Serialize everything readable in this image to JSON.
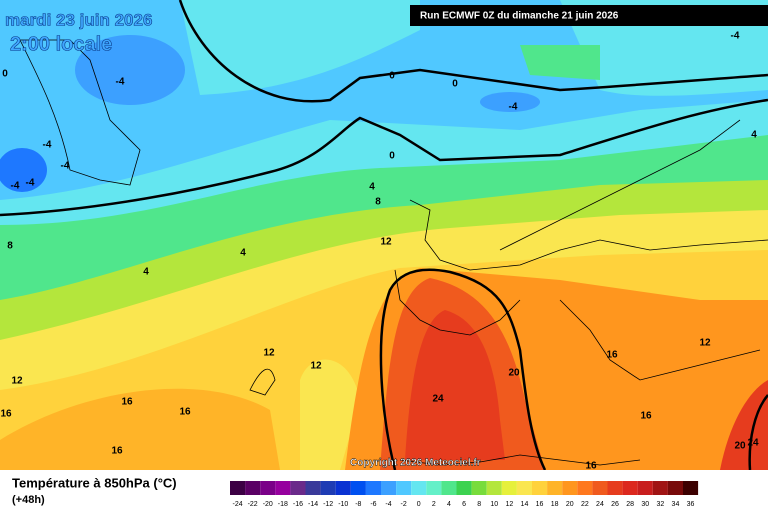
{
  "header": {
    "valid_date": "mardi 23 juin 2026",
    "local_time": "2:00 locale",
    "run": "Run ECMWF 0Z du dimanche 21 juin 2026"
  },
  "copyright": "Copyright 2026 Meteociel.fr",
  "legend": {
    "title": "Température à 850hPa (°C)",
    "lead": "(+48h)"
  },
  "colorbar": {
    "ticks": [
      -24,
      -22,
      -20,
      -18,
      -16,
      -14,
      -12,
      -10,
      -8,
      -6,
      -4,
      -2,
      0,
      2,
      4,
      6,
      8,
      10,
      12,
      14,
      16,
      18,
      20,
      22,
      24,
      26,
      28,
      30,
      32,
      34,
      36
    ],
    "colors": [
      "#3c0044",
      "#5a0064",
      "#7a0088",
      "#96009e",
      "#6a2a8a",
      "#3a3a9a",
      "#1e3cb4",
      "#0a32d2",
      "#0050f0",
      "#1e78ff",
      "#3ca0ff",
      "#50c8ff",
      "#64e6f0",
      "#64f0c8",
      "#50e68c",
      "#3cd250",
      "#78dc3c",
      "#b4e63c",
      "#e6f03c",
      "#fae650",
      "#ffd23c",
      "#ffb428",
      "#ff961e",
      "#ff781e",
      "#f05a1e",
      "#e63c1e",
      "#dc281e",
      "#c81e1e",
      "#a01414",
      "#780a0a",
      "#3c0000"
    ]
  },
  "contour_labels": [
    -4,
    0,
    0,
    -4,
    -4,
    0,
    -4,
    -4,
    -4,
    -4,
    0,
    4,
    8,
    4,
    12,
    8,
    4,
    4,
    12,
    12,
    12,
    16,
    16,
    16,
    16,
    20,
    16,
    12,
    24,
    16,
    20,
    24,
    16
  ]
}
